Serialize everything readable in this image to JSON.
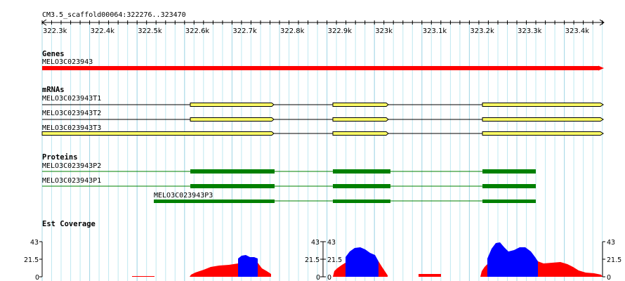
{
  "ruler": {
    "segment_label": "CM3.5_scaffold00064:322276..323470",
    "ticks": [
      "322.3k",
      "322.4k",
      "322.5k",
      "322.6k",
      "322.7k",
      "322.8k",
      "322.9k",
      "323k",
      "323.1k",
      "323.2k",
      "323.3k",
      "323.4k"
    ]
  },
  "genes": {
    "title": "Genes",
    "items": [
      {
        "name": "MELO3C023943",
        "color": "#ff0000"
      }
    ]
  },
  "mrnas": {
    "title": "mRNAs",
    "intron_color": "#000000",
    "exon_color": "#ffff66",
    "items": [
      {
        "name": "MELO3C023943T1"
      },
      {
        "name": "MELO3C023943T2"
      },
      {
        "name": "MELO3C023943T3"
      }
    ]
  },
  "proteins": {
    "title": "Proteins",
    "color": "#008000",
    "items": [
      {
        "name": "MELO3C023943P2"
      },
      {
        "name": "MELO3C023943P1"
      },
      {
        "name": "MELO3C023943P3"
      }
    ]
  },
  "coverage": {
    "title": "Est Coverage",
    "axis_labels": [
      "43",
      "21.5",
      "0"
    ],
    "low_color": "#ff0000",
    "high_color": "#0000ff"
  }
}
